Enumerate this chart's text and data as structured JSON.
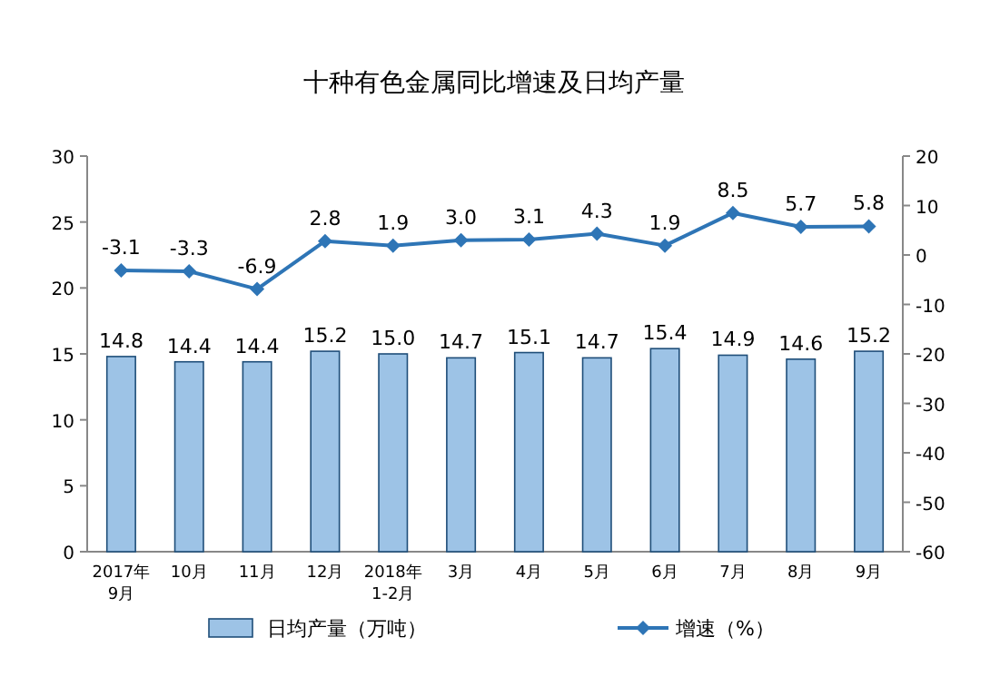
{
  "chart_data": {
    "type": "bar",
    "title": "十种有色金属同比增速及日均产量",
    "categories": [
      "2017年\n9月",
      "10月",
      "11月",
      "12月",
      "2018年\n1-2月",
      "3月",
      "4月",
      "5月",
      "6月",
      "7月",
      "8月",
      "9月"
    ],
    "series": [
      {
        "name": "日均产量（万吨）",
        "color": "#9dc3e6",
        "values": [
          14.8,
          14.4,
          14.4,
          15.2,
          15.0,
          14.7,
          15.1,
          14.7,
          15.4,
          14.9,
          14.6,
          15.2
        ],
        "value_labels": [
          "14.8",
          "14.4",
          "14.4",
          "15.2",
          "15.0",
          "14.7",
          "15.1",
          "14.7",
          "15.4",
          "14.9",
          "14.6",
          "15.2"
        ]
      },
      {
        "name": "增速（%）",
        "type": "line",
        "axis": "y2",
        "color": "#2e75b6",
        "marker": "diamond",
        "values": [
          -3.1,
          -3.3,
          -6.9,
          2.8,
          1.9,
          3.0,
          3.1,
          4.3,
          1.9,
          8.5,
          5.7,
          5.8
        ],
        "value_labels": [
          "-3.1",
          "-3.3",
          "-6.9",
          "2.8",
          "1.9",
          "3.0",
          "3.1",
          "4.3",
          "1.9",
          "8.5",
          "5.7",
          "5.8"
        ]
      }
    ],
    "ylim": [
      0,
      30
    ],
    "yticks": [
      0,
      5,
      10,
      15,
      20,
      25,
      30
    ],
    "y2lim": [
      -60,
      20
    ],
    "y2ticks": [
      -60,
      -50,
      -40,
      -30,
      -20,
      -10,
      0,
      10,
      20
    ],
    "legend": "bottom"
  }
}
